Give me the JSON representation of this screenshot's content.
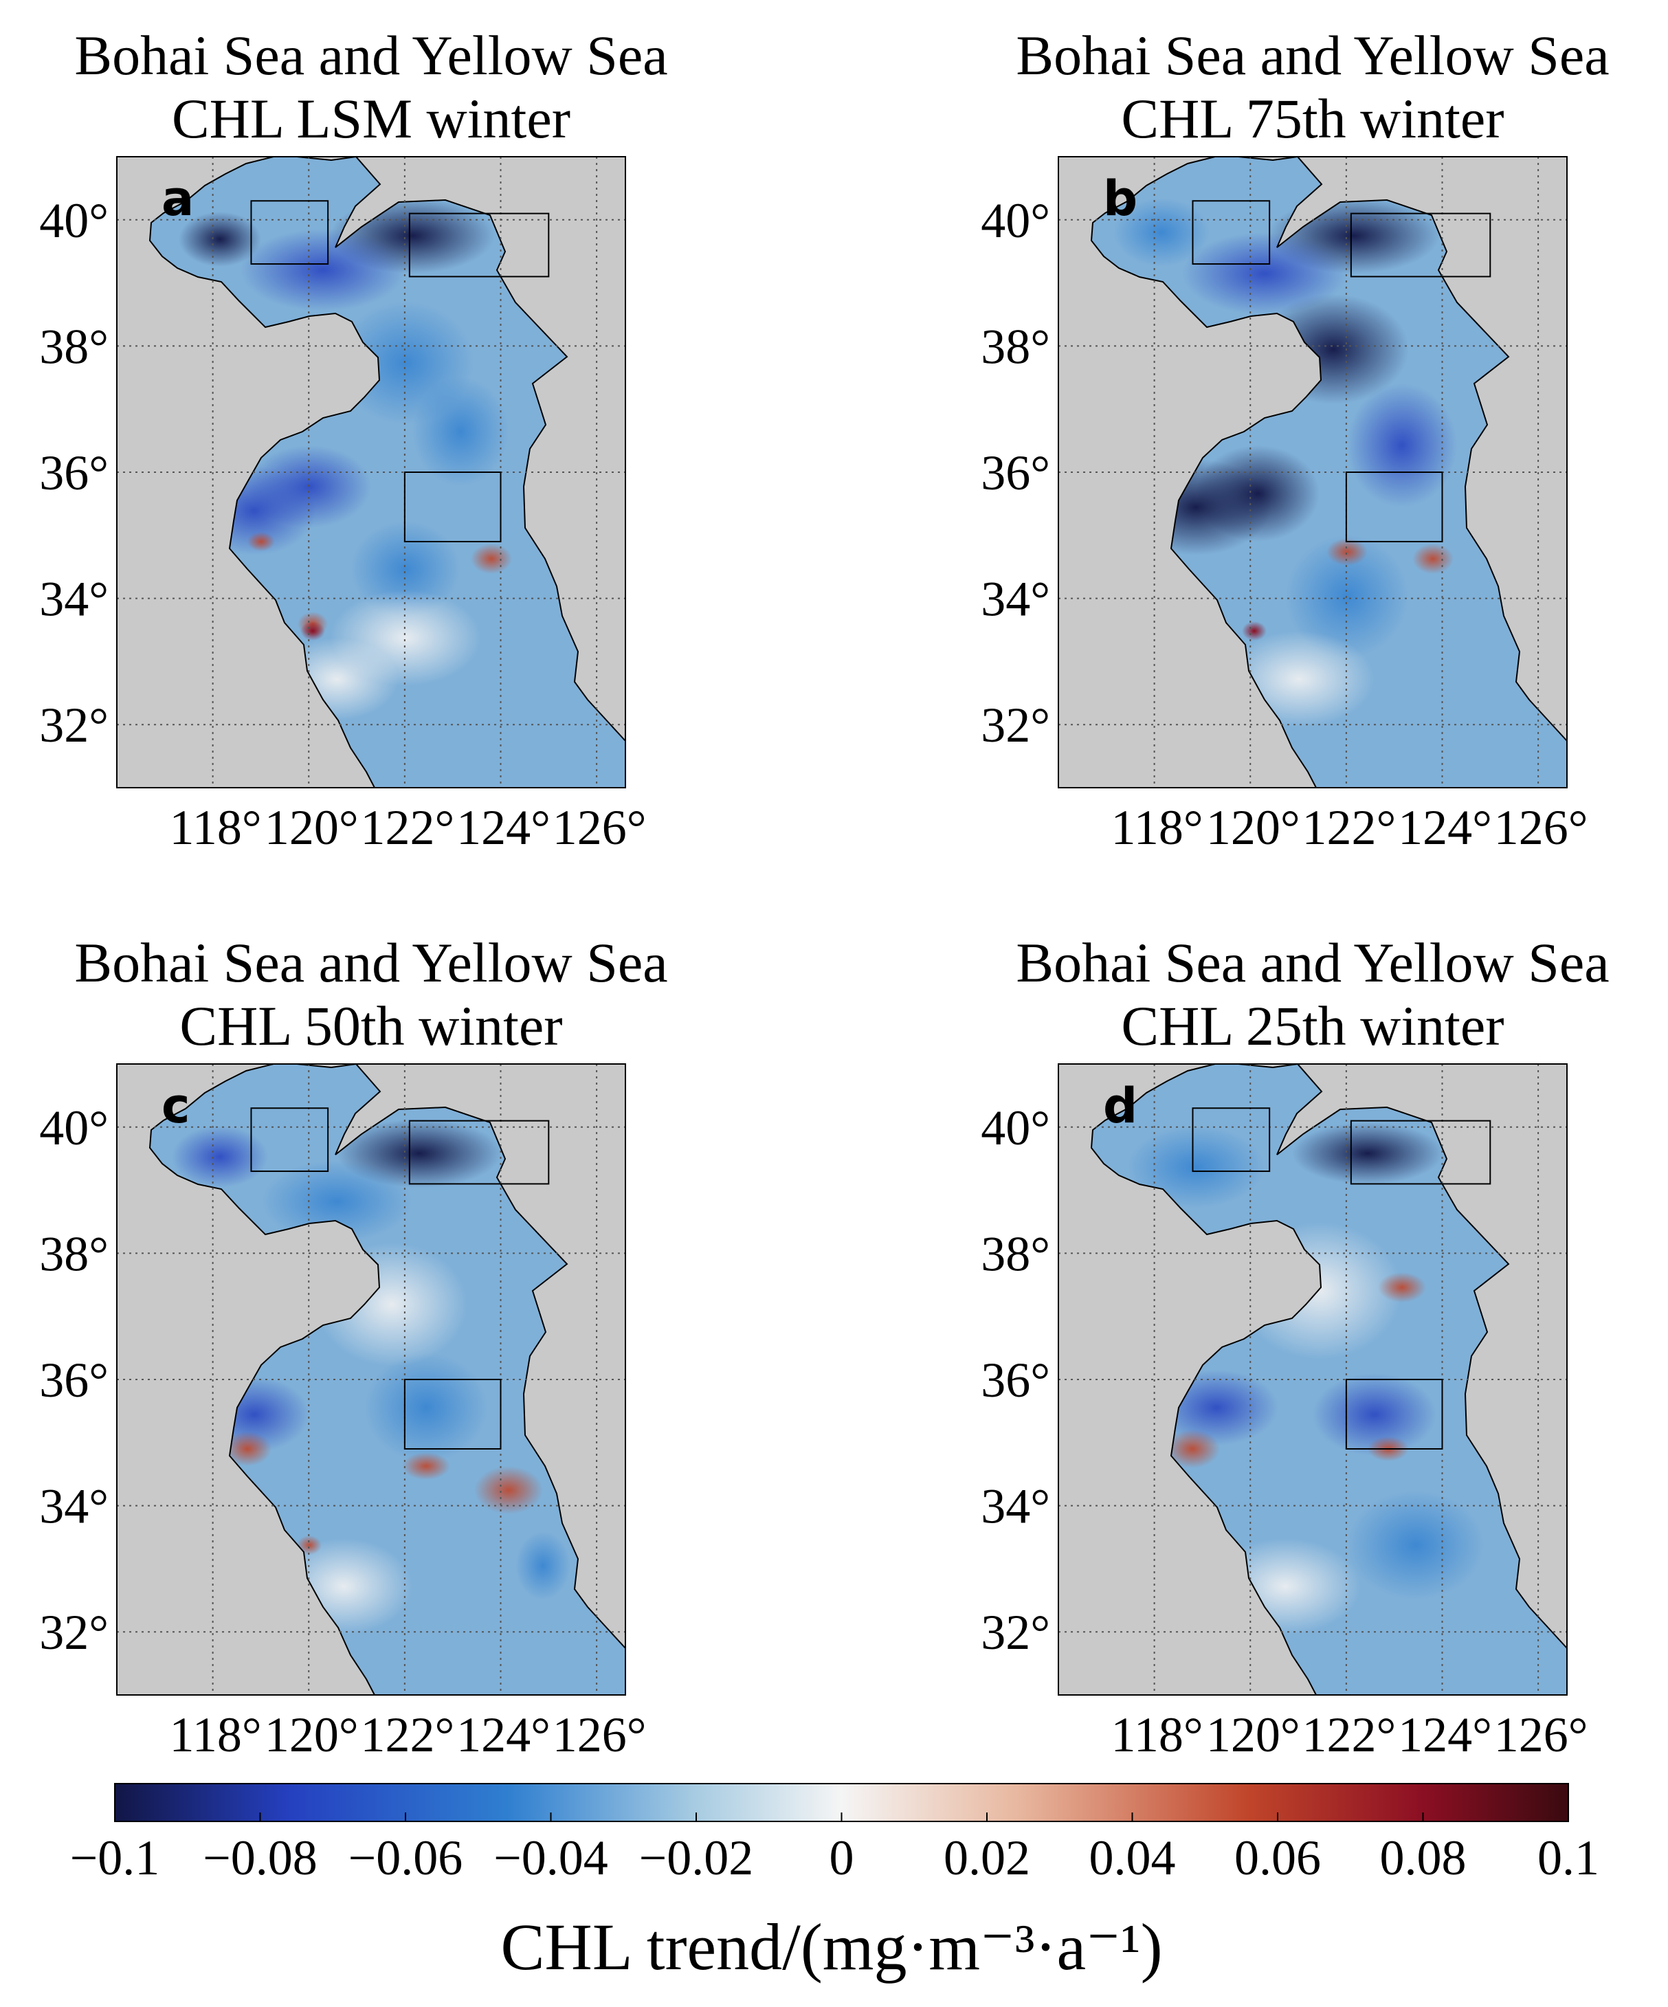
{
  "panels": [
    {
      "id": "a",
      "title_line1": "Bohai Sea and Yellow Sea",
      "title_line2": "CHL LSM winter"
    },
    {
      "id": "b",
      "title_line1": "Bohai Sea and Yellow Sea",
      "title_line2": "CHL 75th winter"
    },
    {
      "id": "c",
      "title_line1": "Bohai Sea and Yellow Sea",
      "title_line2": "CHL 50th winter"
    },
    {
      "id": "d",
      "title_line1": "Bohai Sea and Yellow Sea",
      "title_line2": "CHL 25th winter"
    }
  ],
  "axes": {
    "lat_ticks": [
      "40°",
      "38°",
      "36°",
      "34°",
      "32°"
    ],
    "lon_ticks": [
      "118°",
      "120°",
      "122°",
      "124°",
      "126°"
    ]
  },
  "colorbar": {
    "ticks": [
      "−0.1",
      "−0.08",
      "−0.06",
      "−0.04",
      "−0.02",
      "0",
      "0.02",
      "0.04",
      "0.06",
      "0.08",
      "0.1"
    ],
    "label": "CHL trend/(mg·m⁻³·a⁻¹)",
    "colors": [
      "#121646",
      "#2540c0",
      "#2f7fd0",
      "#a8cce2",
      "#f5f5f5",
      "#e8b8a0",
      "#c0452a",
      "#8b0f23",
      "#3a0a10"
    ]
  },
  "chart_data": {
    "type": "heatmap",
    "xlabel": "",
    "ylabel": "",
    "xlim": [
      116,
      126.6
    ],
    "ylim": [
      31,
      41
    ],
    "colorbar_range": [
      -0.1,
      0.1
    ],
    "colors": {
      "land": "#c9c9c9",
      "grid": "#555555"
    }
  }
}
